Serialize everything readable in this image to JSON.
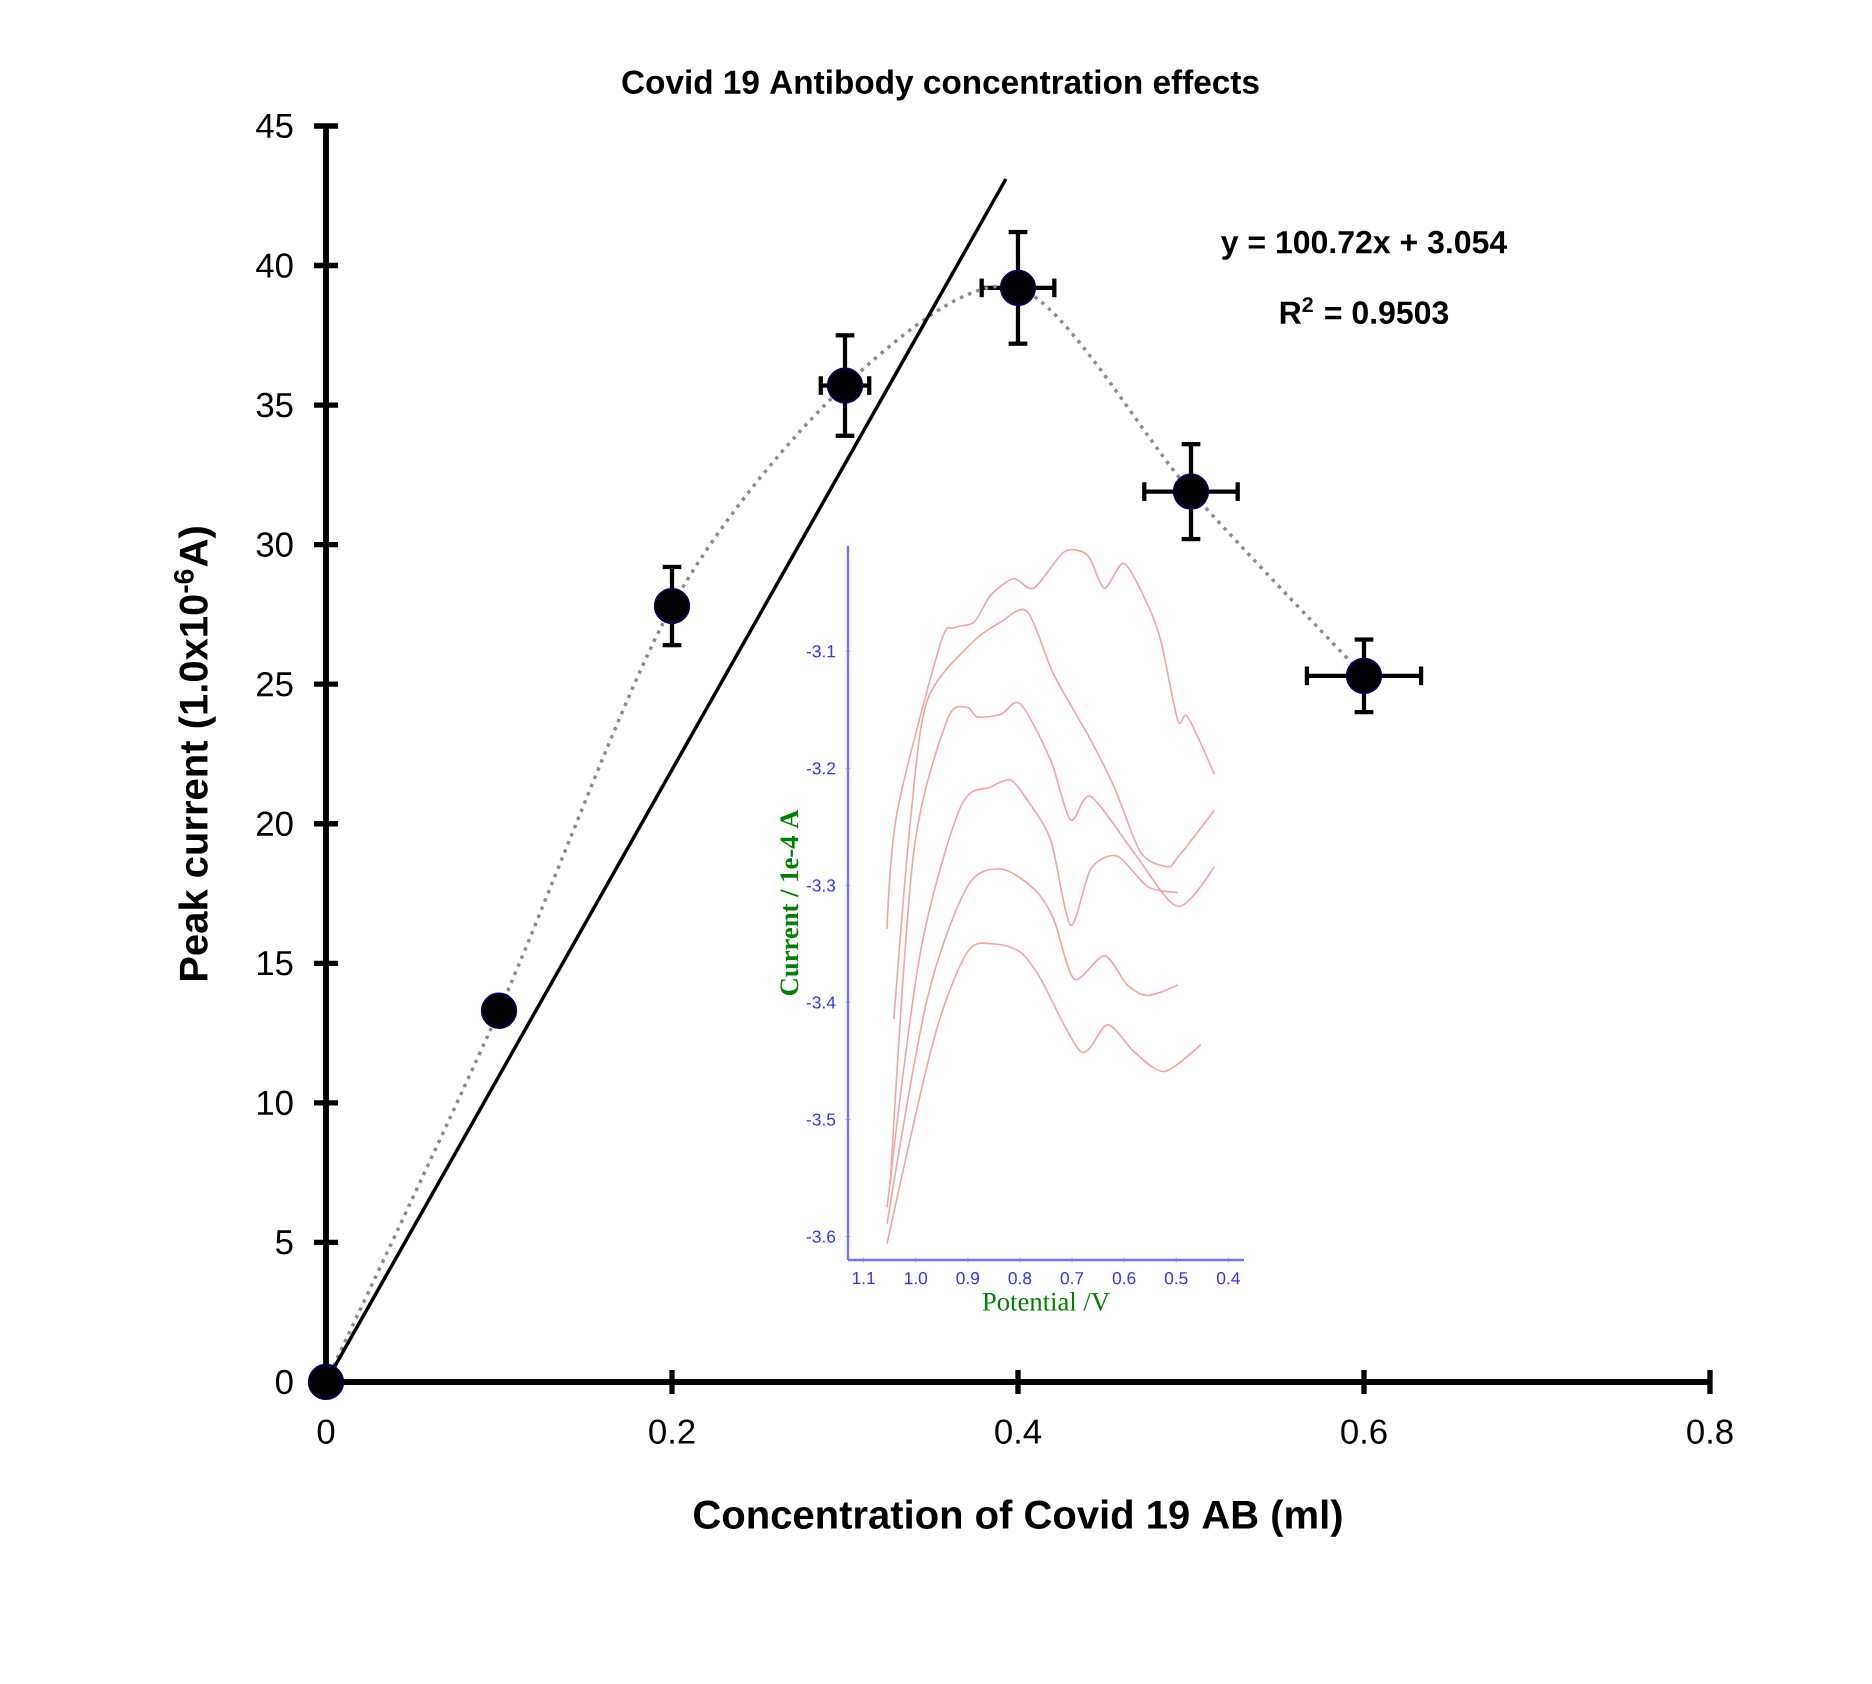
{
  "chart_data": [
    {
      "type": "scatter",
      "title": "Covid 19  Antibody  concentration effects",
      "xlabel": "Concentration of  Covid 19  AB (ml)",
      "ylabel": "Peak current  (1.0x10$^{-6}$A)",
      "x": [
        0,
        0.1,
        0.2,
        0.3,
        0.4,
        0.5,
        0.6
      ],
      "series": [
        {
          "type": "scatter",
          "color": "#000000",
          "marker": "circle",
          "values": [
            0,
            13.3,
            27.8,
            35.7,
            39.2,
            31.9,
            25.3
          ],
          "errors": [
            null,
            null,
            1.4,
            1.8,
            2.0,
            1.7,
            1.3
          ],
          "xerrors": [
            null,
            null,
            null,
            0.014,
            0.021,
            0.027,
            0.033
          ]
        },
        {
          "type": "line",
          "color": "#8c8c8c",
          "line_style": "dotted",
          "values": [
            0,
            13.3,
            27.8,
            35.7,
            39.2,
            31.9,
            25.3
          ]
        },
        {
          "type": "line",
          "color": "#000000",
          "line_style": "solid",
          "x": [
            0,
            0.393
          ],
          "values": [
            0,
            43.1
          ]
        }
      ],
      "xlim": [
        0,
        0.8
      ],
      "ylim": [
        0,
        45
      ],
      "xticks": [
        0,
        0.2,
        0.4,
        0.6,
        0.8
      ],
      "yticks": [
        0,
        5,
        10,
        15,
        20,
        25,
        30,
        35,
        40,
        45
      ],
      "annotations": [
        "y = 100.72x + 3.054",
        "R$^{2}$ = 0.9503"
      ]
    },
    {
      "type": "line",
      "xlabel": "Potential /V",
      "ylabel": "Current / 1e-4 A",
      "series": [
        {
          "color": "#f5a3a3",
          "x": [
            1.055,
            1.036,
            0.953,
            0.927,
            0.888,
            0.856,
            0.812,
            0.773,
            0.715,
            0.67,
            0.638,
            0.6,
            0.555,
            0.529,
            0.497,
            0.478,
            0.427
          ],
          "values": [
            -3.337,
            -3.238,
            -3.094,
            -3.08,
            -3.075,
            -3.052,
            -3.038,
            -3.046,
            -3.015,
            -3.018,
            -3.046,
            -3.025,
            -3.06,
            -3.092,
            -3.159,
            -3.156,
            -3.205
          ]
        },
        {
          "color": "#f5a3a3",
          "x": [
            1.042,
            1.01,
            0.978,
            0.895,
            0.837,
            0.786,
            0.735,
            0.67,
            0.619,
            0.568,
            0.517,
            0.497,
            0.427
          ],
          "values": [
            -3.414,
            -3.244,
            -3.142,
            -3.094,
            -3.075,
            -3.066,
            -3.12,
            -3.171,
            -3.216,
            -3.272,
            -3.284,
            -3.276,
            -3.236
          ]
        },
        {
          "color": "#f5a3a3",
          "x": [
            1.049,
            1.004,
            0.94,
            0.901,
            0.882,
            0.837,
            0.799,
            0.741,
            0.703,
            0.664,
            0.581,
            0.497,
            0.427
          ],
          "values": [
            -3.555,
            -3.272,
            -3.159,
            -3.148,
            -3.156,
            -3.154,
            -3.145,
            -3.193,
            -3.244,
            -3.224,
            -3.272,
            -3.318,
            -3.284
          ]
        },
        {
          "color": "#f5a3a3",
          "x": [
            1.055,
            0.991,
            0.914,
            0.856,
            0.818,
            0.786,
            0.741,
            0.703,
            0.664,
            0.613,
            0.555,
            0.497
          ],
          "values": [
            -3.575,
            -3.357,
            -3.233,
            -3.216,
            -3.21,
            -3.227,
            -3.261,
            -3.334,
            -3.286,
            -3.275,
            -3.301,
            -3.306
          ]
        },
        {
          "color": "#f5a3a3",
          "x": [
            1.055,
            0.978,
            0.901,
            0.837,
            0.773,
            0.735,
            0.696,
            0.638,
            0.594,
            0.555,
            0.497
          ],
          "values": [
            -3.589,
            -3.397,
            -3.301,
            -3.286,
            -3.303,
            -3.329,
            -3.38,
            -3.36,
            -3.385,
            -3.394,
            -3.385
          ]
        },
        {
          "color": "#f5a3a3",
          "x": [
            1.055,
            0.965,
            0.901,
            0.85,
            0.799,
            0.76,
            0.683,
            0.632,
            0.581,
            0.523,
            0.453
          ],
          "values": [
            -3.606,
            -3.431,
            -3.357,
            -3.35,
            -3.357,
            -3.38,
            -3.442,
            -3.419,
            -3.442,
            -3.459,
            -3.436
          ]
        }
      ],
      "xlim": [
        1.13,
        0.37
      ],
      "ylim": [
        -3.62,
        -3.01
      ],
      "xticks": [
        1.1,
        {
          "value": 1,
          "label": "1.0"
        },
        0.9,
        0.8,
        0.7,
        0.6,
        0.5,
        0.4
      ],
      "yticks": [
        -3.1,
        -3.2,
        -3.3,
        -3.4,
        -3.5,
        -3.6
      ]
    }
  ]
}
